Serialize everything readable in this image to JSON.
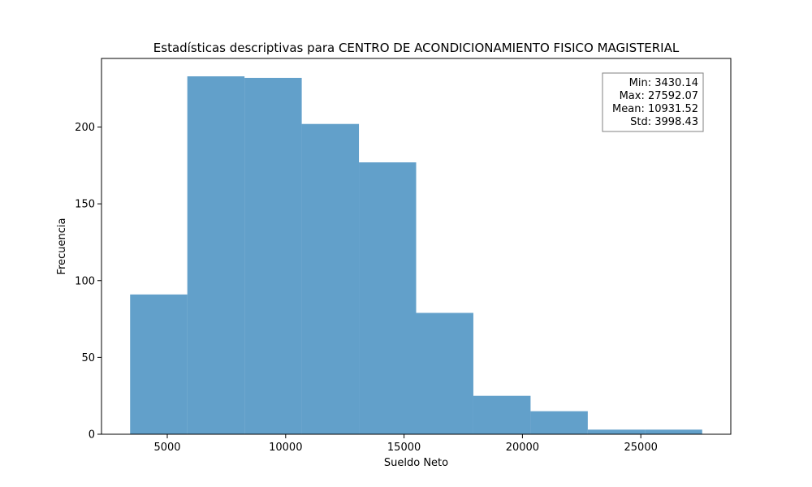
{
  "chart_data": {
    "type": "histogram",
    "title": "Estadísticas descriptivas para CENTRO DE ACONDICIONAMIENTO FISICO MAGISTERIAL",
    "xlabel": "Sueldo Neto",
    "ylabel": "Frecuencia",
    "bins": [
      {
        "start": 3430.14,
        "end": 5846.33,
        "count": 91
      },
      {
        "start": 5846.33,
        "end": 8262.53,
        "count": 233
      },
      {
        "start": 8262.53,
        "end": 10678.72,
        "count": 232
      },
      {
        "start": 10678.72,
        "end": 13094.92,
        "count": 202
      },
      {
        "start": 13094.92,
        "end": 15511.11,
        "count": 177
      },
      {
        "start": 15511.11,
        "end": 17927.3,
        "count": 79
      },
      {
        "start": 17927.3,
        "end": 20343.5,
        "count": 25
      },
      {
        "start": 20343.5,
        "end": 22759.69,
        "count": 15
      },
      {
        "start": 22759.69,
        "end": 25175.88,
        "count": 3
      },
      {
        "start": 25175.88,
        "end": 27592.07,
        "count": 3
      }
    ],
    "xlim": [
      2222.04,
      28800.17
    ],
    "ylim": [
      0,
      244.65
    ],
    "xticks": [
      5000,
      10000,
      15000,
      20000,
      25000
    ],
    "yticks": [
      0,
      50,
      100,
      150,
      200
    ],
    "bar_color": "#1f77b4",
    "bar_opacity": 0.7,
    "grid": false,
    "stats_box": {
      "placement": "top-right",
      "lines": [
        "Min: 3430.14",
        "Max: 27592.07",
        "Mean: 10931.52",
        "Std: 3998.43"
      ]
    }
  }
}
